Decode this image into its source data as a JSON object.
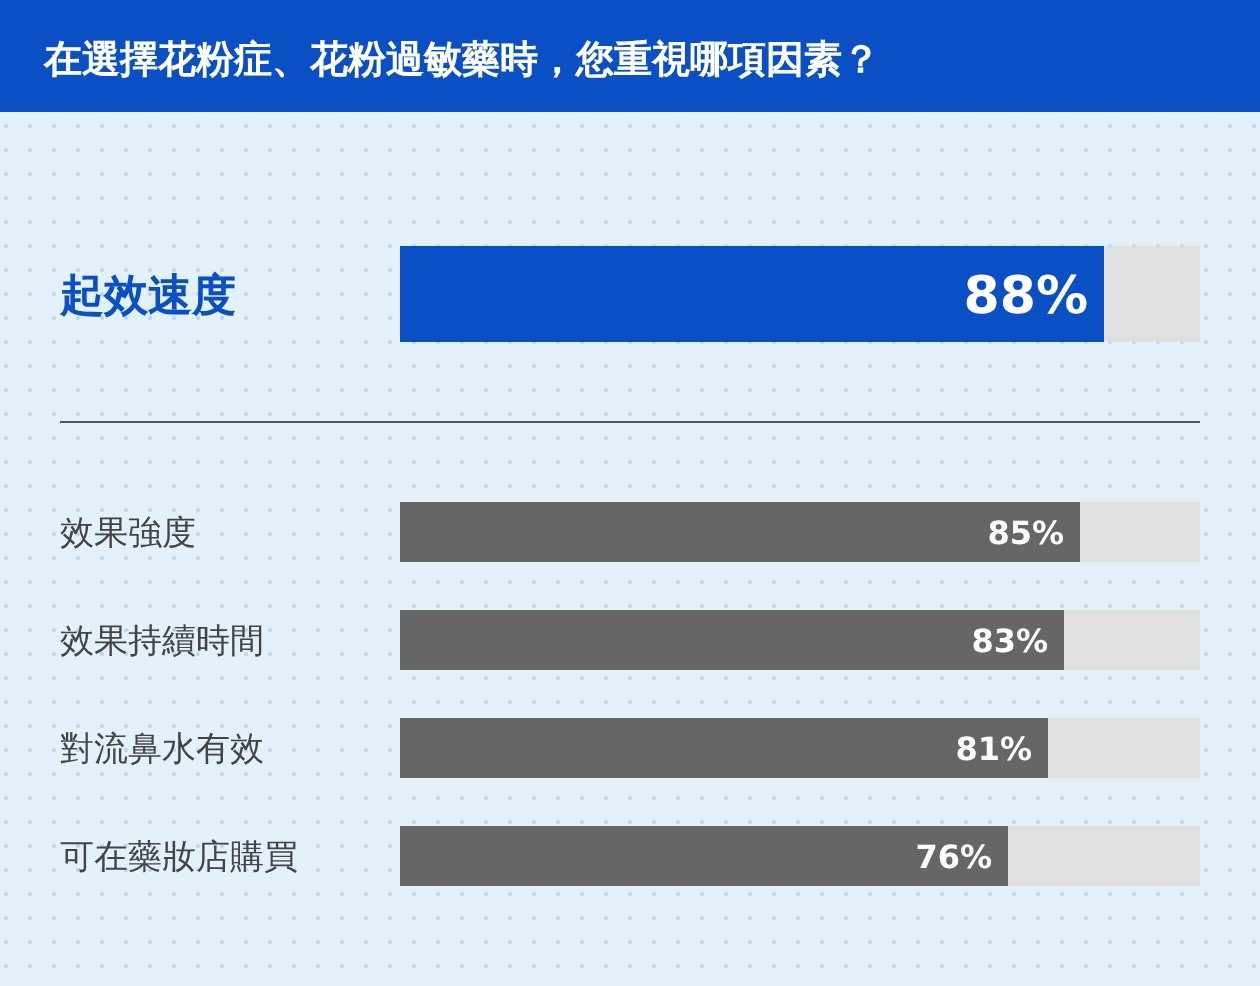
{
  "chart_data": {
    "type": "bar",
    "orientation": "horizontal",
    "title": "在選擇花粉症、花粉過敏藥時，您重視哪項因素？",
    "categories": [
      "起效速度",
      "效果強度",
      "效果持續時間",
      "對流鼻水有效",
      "可在藥妝店購買"
    ],
    "values": [
      88,
      85,
      83,
      81,
      76
    ],
    "colors": [
      "#0a4fc4",
      "#666666",
      "#666666",
      "#666666",
      "#666666"
    ],
    "value_labels": [
      "88%",
      "85%",
      "83%",
      "81%",
      "76%"
    ],
    "xlim": [
      0,
      100
    ]
  }
}
